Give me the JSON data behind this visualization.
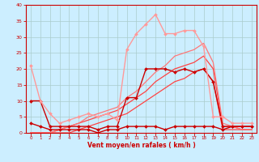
{
  "xlabel": "Vent moyen/en rafales ( km/h )",
  "xlim": [
    -0.5,
    23.5
  ],
  "ylim": [
    0,
    40
  ],
  "yticks": [
    0,
    5,
    10,
    15,
    20,
    25,
    30,
    35,
    40
  ],
  "xticks": [
    0,
    1,
    2,
    3,
    4,
    5,
    6,
    7,
    8,
    9,
    10,
    11,
    12,
    13,
    14,
    15,
    16,
    17,
    18,
    19,
    20,
    21,
    22,
    23
  ],
  "bg_color": "#cceeff",
  "grid_color": "#aacccc",
  "lines": [
    {
      "x": [
        0,
        1,
        2,
        3,
        4,
        5,
        6,
        7,
        8,
        9,
        10,
        11,
        12,
        13,
        14,
        15,
        16,
        17,
        18,
        19,
        20,
        21,
        22,
        23
      ],
      "y": [
        10,
        10,
        2,
        2,
        2,
        2,
        2,
        1,
        2,
        2,
        11,
        11,
        20,
        20,
        20,
        19,
        20,
        19,
        20,
        16,
        2,
        2,
        2,
        2
      ],
      "color": "#cc0000",
      "marker": "D",
      "markersize": 2.0,
      "linewidth": 1.0
    },
    {
      "x": [
        0,
        1,
        2,
        3,
        4,
        5,
        6,
        7,
        8,
        9,
        10,
        11,
        12,
        13,
        14,
        15,
        16,
        17,
        18,
        19,
        20,
        21,
        22,
        23
      ],
      "y": [
        3,
        2,
        1,
        1,
        1,
        1,
        1,
        0,
        1,
        1,
        2,
        2,
        2,
        2,
        1,
        2,
        2,
        2,
        2,
        2,
        1,
        2,
        2,
        2
      ],
      "color": "#cc0000",
      "marker": "D",
      "markersize": 2.0,
      "linewidth": 1.0
    },
    {
      "x": [
        0,
        1,
        2,
        3,
        4,
        5,
        6,
        7,
        8,
        9,
        10,
        11,
        12,
        13,
        14,
        15,
        16,
        17,
        18,
        19,
        20,
        21,
        22,
        23
      ],
      "y": [
        21,
        10,
        6,
        3,
        4,
        5,
        6,
        5,
        6,
        4,
        26,
        31,
        34,
        37,
        31,
        31,
        32,
        32,
        27,
        5,
        5,
        3,
        3,
        3
      ],
      "color": "#ff9999",
      "marker": "D",
      "markersize": 2.0,
      "linewidth": 1.0
    },
    {
      "x": [
        0,
        1,
        2,
        3,
        4,
        5,
        6,
        7,
        8,
        9,
        10,
        11,
        12,
        13,
        14,
        15,
        16,
        17,
        18,
        19,
        20,
        21,
        22,
        23
      ],
      "y": [
        0,
        0,
        0,
        0,
        0,
        1,
        2,
        3,
        4,
        5,
        6,
        8,
        10,
        12,
        14,
        16,
        17,
        19,
        20,
        16,
        1,
        1,
        1,
        1
      ],
      "color": "#ff4444",
      "marker": null,
      "linewidth": 0.9
    },
    {
      "x": [
        0,
        1,
        2,
        3,
        4,
        5,
        6,
        7,
        8,
        9,
        10,
        11,
        12,
        13,
        14,
        15,
        16,
        17,
        18,
        19,
        20,
        21,
        22,
        23
      ],
      "y": [
        0,
        0,
        0,
        1,
        2,
        3,
        4,
        5,
        6,
        7,
        9,
        11,
        13,
        16,
        18,
        20,
        21,
        22,
        24,
        20,
        2,
        2,
        1,
        1
      ],
      "color": "#ff4444",
      "marker": null,
      "linewidth": 0.9
    },
    {
      "x": [
        0,
        1,
        2,
        3,
        4,
        5,
        6,
        7,
        8,
        9,
        10,
        11,
        12,
        13,
        14,
        15,
        16,
        17,
        18,
        19,
        20,
        21,
        22,
        23
      ],
      "y": [
        0,
        0,
        0,
        1,
        2,
        3,
        5,
        6,
        7,
        8,
        11,
        13,
        16,
        19,
        21,
        24,
        25,
        26,
        28,
        22,
        3,
        2,
        1,
        1
      ],
      "color": "#ff7777",
      "marker": null,
      "linewidth": 0.9
    }
  ]
}
